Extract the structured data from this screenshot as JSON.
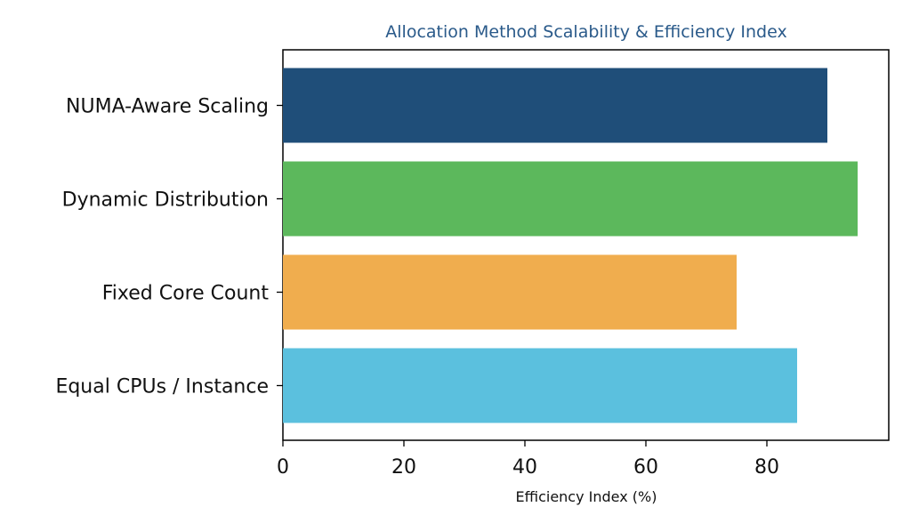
{
  "chart_data": {
    "type": "bar",
    "orientation": "horizontal",
    "title": "Allocation Method Scalability & Efficiency Index",
    "xlabel": "Efficiency Index (%)",
    "ylabel": "",
    "categories": [
      "NUMA-Aware Scaling",
      "Dynamic Distribution",
      "Fixed Core Count",
      "Equal CPUs / Instance"
    ],
    "values": [
      90,
      95,
      75,
      85
    ],
    "xlim": [
      0,
      100
    ],
    "xticks": [
      0,
      20,
      40,
      60,
      80
    ],
    "grid": false,
    "legend": "none",
    "colors": {
      "title": "#2a5a8a",
      "bars": [
        "#1f4e79",
        "#5cb85c",
        "#f0ad4e",
        "#5bc0de"
      ],
      "axes": "#000000"
    }
  }
}
